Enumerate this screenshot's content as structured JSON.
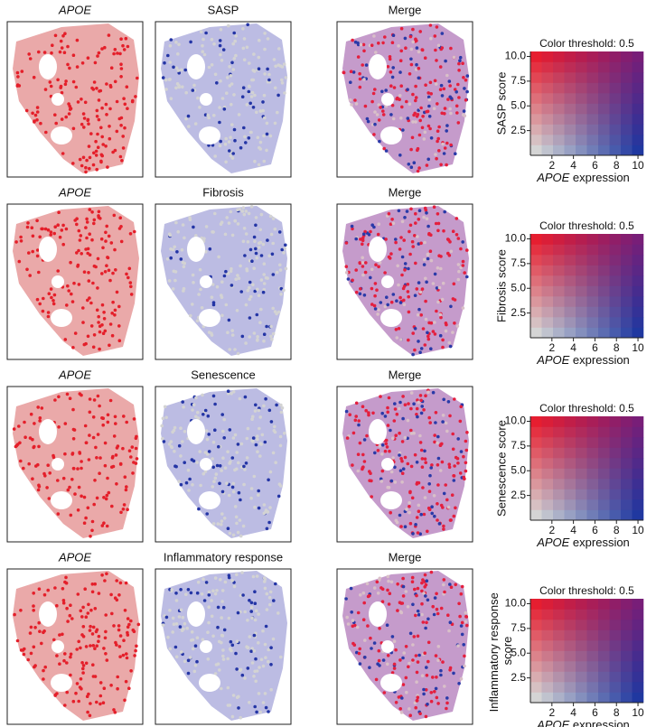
{
  "chart_data": [
    {
      "type": "heatmap",
      "panel_titles": [
        "APOE",
        "SASP",
        "Merge"
      ],
      "title": "Color threshold: 0.5",
      "xlabel": "APOE expression",
      "ylabel": "SASP score",
      "xlim": [
        0,
        10.5
      ],
      "ylim": [
        0,
        10.5
      ],
      "xticks": [
        2,
        4,
        6,
        8,
        10
      ],
      "yticks": [
        2.5,
        {
          "value": 5,
          "label": "5.0"
        },
        7.5,
        {
          "value": 10,
          "label": "10.0"
        }
      ]
    },
    {
      "type": "heatmap",
      "panel_titles": [
        "APOE",
        "Fibrosis",
        "Merge"
      ],
      "title": "Color threshold: 0.5",
      "xlabel": "APOE expression",
      "ylabel": "Fibrosis score",
      "xlim": [
        0,
        10.5
      ],
      "ylim": [
        0,
        10.5
      ],
      "xticks": [
        2,
        4,
        6,
        8,
        10
      ],
      "yticks": [
        2.5,
        {
          "value": 5,
          "label": "5.0"
        },
        7.5,
        {
          "value": 10,
          "label": "10.0"
        }
      ]
    },
    {
      "type": "heatmap",
      "panel_titles": [
        "APOE",
        "Senescence",
        "Merge"
      ],
      "title": "Color threshold: 0.5",
      "xlabel": "APOE expression",
      "ylabel": "Senescence score",
      "xlim": [
        0,
        10.5
      ],
      "ylim": [
        0,
        10.5
      ],
      "xticks": [
        2,
        4,
        6,
        8,
        10
      ],
      "yticks": [
        2.5,
        {
          "value": 5,
          "label": "5.0"
        },
        7.5,
        {
          "value": 10,
          "label": "10.0"
        }
      ]
    },
    {
      "type": "heatmap",
      "panel_titles": [
        "APOE",
        "Inflammatory response",
        "Merge"
      ],
      "title": "Color threshold: 0.5",
      "xlabel": "APOE expression",
      "ylabel": "Inflammatory response score",
      "xlim": [
        0,
        10.5
      ],
      "ylim": [
        0,
        10.5
      ],
      "xticks": [
        2,
        4,
        6,
        8,
        10
      ],
      "yticks": [
        2.5,
        {
          "value": 5,
          "label": "5.0"
        },
        7.5,
        {
          "value": 10,
          "label": "10.0"
        }
      ]
    }
  ]
}
